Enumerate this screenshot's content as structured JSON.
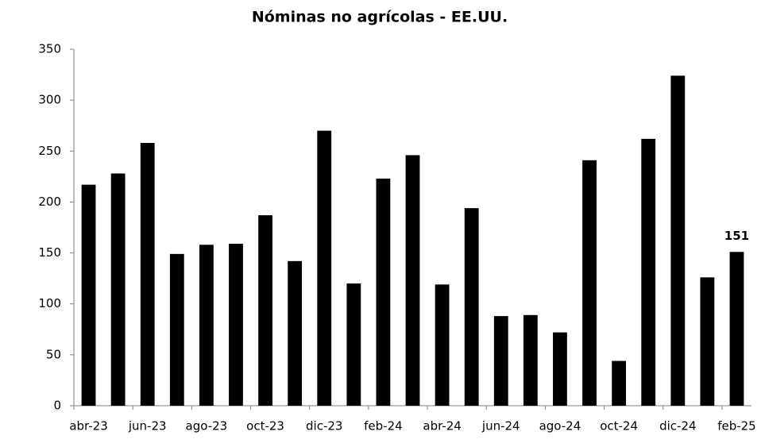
{
  "chart_data": {
    "type": "bar",
    "title": "Nóminas no agrícolas - EE.UU.",
    "categories": [
      "abr-23",
      null,
      "jun-23",
      null,
      "ago-23",
      null,
      "oct-23",
      null,
      "dic-23",
      null,
      "feb-24",
      null,
      "abr-24",
      null,
      "jun-24",
      null,
      "ago-24",
      null,
      "oct-24",
      null,
      "dic-24",
      null,
      "feb-25"
    ],
    "values": [
      217,
      228,
      258,
      149,
      158,
      159,
      187,
      142,
      270,
      120,
      223,
      246,
      119,
      194,
      88,
      89,
      72,
      241,
      44,
      262,
      324,
      126,
      151
    ],
    "value_labels": [
      null,
      null,
      null,
      null,
      null,
      null,
      null,
      null,
      null,
      null,
      null,
      null,
      null,
      null,
      null,
      null,
      null,
      null,
      null,
      null,
      null,
      null,
      "151"
    ],
    "color": "#000000",
    "ylim": [
      0,
      350
    ],
    "yticks": [
      0,
      50,
      100,
      150,
      200,
      250,
      300,
      350
    ],
    "grid": false
  }
}
